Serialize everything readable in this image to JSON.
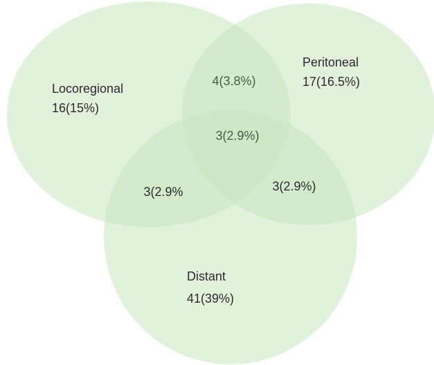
{
  "sets": [
    {
      "label": "Locoregional",
      "count": "16(15%)"
    },
    {
      "label": "Peritoneal",
      "count": "17(16.5%)"
    },
    {
      "label": "Distant",
      "count": "41(39%)"
    }
  ],
  "regions": [
    {
      "label": "4(3.8%)"
    },
    {
      "label": "3(2.9%)"
    },
    {
      "label": "3(2.9%"
    },
    {
      "label": "3(2.9%)"
    }
  ]
}
